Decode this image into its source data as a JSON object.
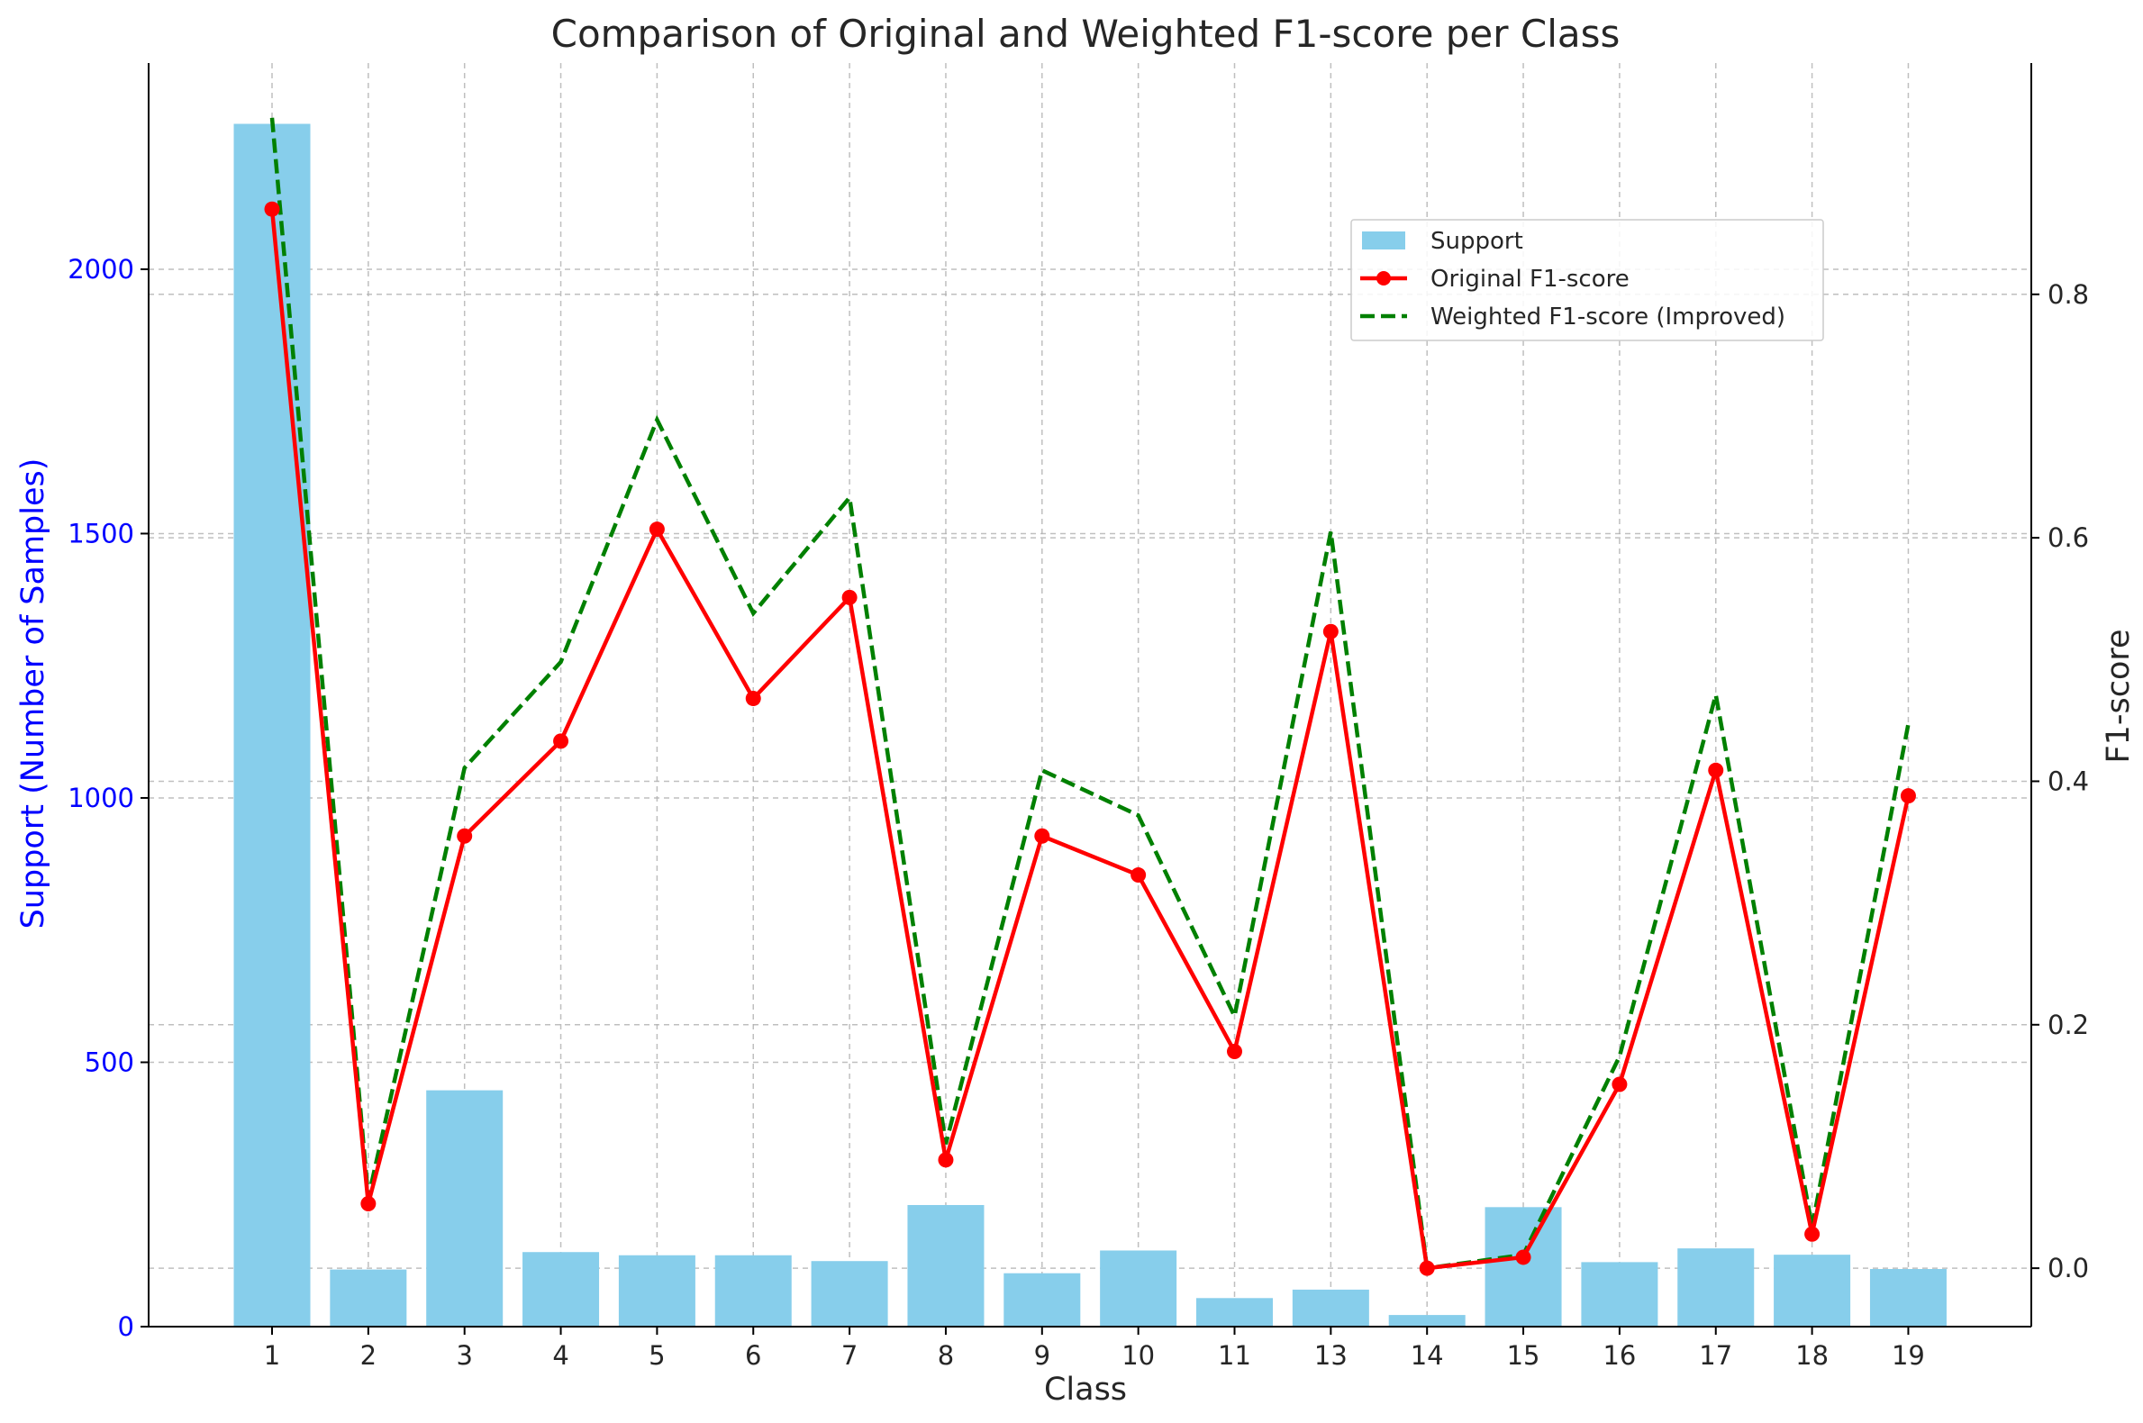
{
  "chart_data": {
    "type": "bar+line",
    "title": "Comparison of Original and Weighted F1-score per Class",
    "xlabel": "Class",
    "ylabel_left": "Support (Number of Samples)",
    "ylabel_right": "F1-score",
    "categories": [
      "1",
      "2",
      "3",
      "4",
      "5",
      "6",
      "7",
      "8",
      "9",
      "10",
      "11",
      "13",
      "14",
      "15",
      "16",
      "17",
      "18",
      "19"
    ],
    "left_axis": {
      "ylim": [
        0,
        2390
      ],
      "ticks": [
        0,
        500,
        1000,
        1500,
        2000
      ],
      "tick_labels": [
        "0",
        "500",
        "1000",
        "1500",
        "2000"
      ]
    },
    "right_axis": {
      "ylim": [
        -0.048,
        0.99
      ],
      "ticks": [
        0.0,
        0.2,
        0.4,
        0.6,
        0.8
      ],
      "tick_labels": [
        "0.0",
        "0.2",
        "0.4",
        "0.6",
        "0.8"
      ]
    },
    "grid": true,
    "legend_position": "upper-right",
    "series": [
      {
        "name": "Support",
        "kind": "bar",
        "axis": "left",
        "color": "#87ceeb",
        "values": [
          2275,
          108,
          447,
          141,
          135,
          135,
          124,
          230,
          101,
          144,
          54,
          70,
          22,
          226,
          122,
          148,
          136,
          109
        ]
      },
      {
        "name": "Original F1-score",
        "kind": "line-marker",
        "axis": "right",
        "color": "#ff0000",
        "values": [
          0.87,
          0.053,
          0.355,
          0.433,
          0.607,
          0.468,
          0.551,
          0.089,
          0.355,
          0.323,
          0.178,
          0.523,
          0.0,
          0.009,
          0.151,
          0.409,
          0.028,
          0.388
        ]
      },
      {
        "name": "Weighted F1-score (Improved)",
        "kind": "line-dashed",
        "axis": "right",
        "color": "#008000",
        "values": [
          0.945,
          0.058,
          0.411,
          0.498,
          0.697,
          0.538,
          0.633,
          0.102,
          0.409,
          0.372,
          0.207,
          0.605,
          0.0,
          0.011,
          0.174,
          0.471,
          0.034,
          0.447
        ]
      }
    ]
  }
}
